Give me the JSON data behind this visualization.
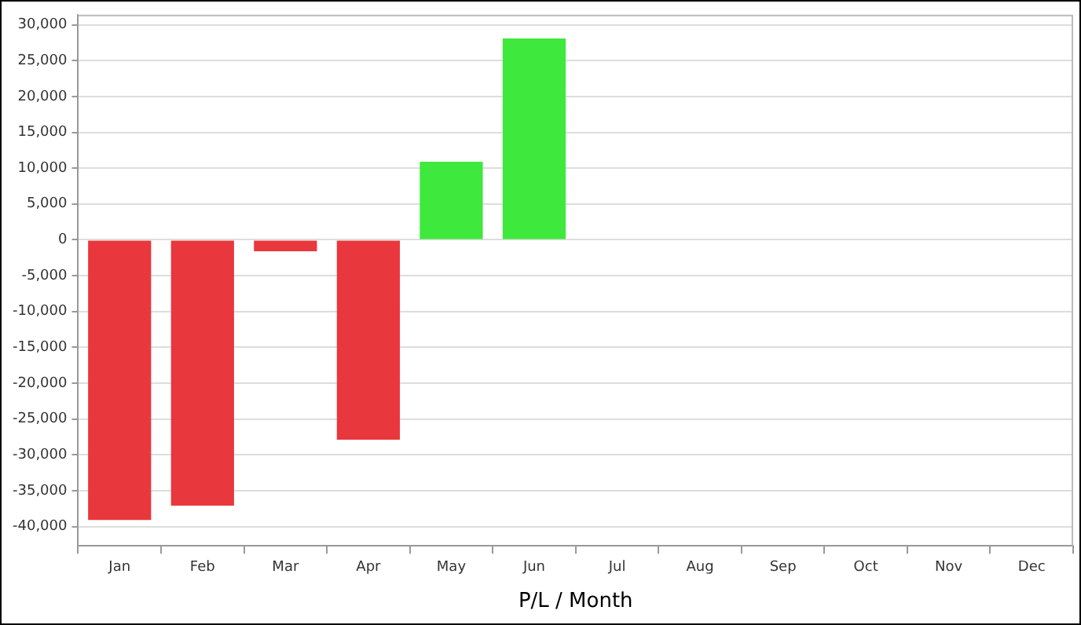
{
  "chart_data": {
    "type": "bar",
    "xlabel": "P/L / Month",
    "categories": [
      "Jan",
      "Feb",
      "Mar",
      "Apr",
      "May",
      "Jun",
      "Jul",
      "Aug",
      "Sep",
      "Oct",
      "Nov",
      "Dec"
    ],
    "values": [
      -39100,
      -37100,
      -1600,
      -27900,
      10900,
      28100,
      null,
      null,
      null,
      null,
      null,
      null
    ],
    "colors": [
      "#e8383d",
      "#e8383d",
      "#e8383d",
      "#e8383d",
      "#3ee83c",
      "#3ee83c",
      null,
      null,
      null,
      null,
      null,
      null
    ],
    "ylim": [
      -42700,
      31400
    ],
    "yticks": [
      {
        "value": -40000,
        "label": "-40,000"
      },
      {
        "value": -35000,
        "label": "-35,000"
      },
      {
        "value": -30000,
        "label": "-30,000"
      },
      {
        "value": -25000,
        "label": "-25,000"
      },
      {
        "value": -20000,
        "label": "-20,000"
      },
      {
        "value": -15000,
        "label": "-15,000"
      },
      {
        "value": -10000,
        "label": "-10,000"
      },
      {
        "value": -5000,
        "label": "-5,000"
      },
      0,
      {
        "value": 5000,
        "label": "5,000"
      },
      {
        "value": 10000,
        "label": "10,000"
      },
      {
        "value": 15000,
        "label": "15,000"
      },
      {
        "value": 20000,
        "label": "20,000"
      },
      {
        "value": 25000,
        "label": "25,000"
      },
      {
        "value": 30000,
        "label": "30,000"
      }
    ],
    "grid": "y",
    "legend": false
  }
}
